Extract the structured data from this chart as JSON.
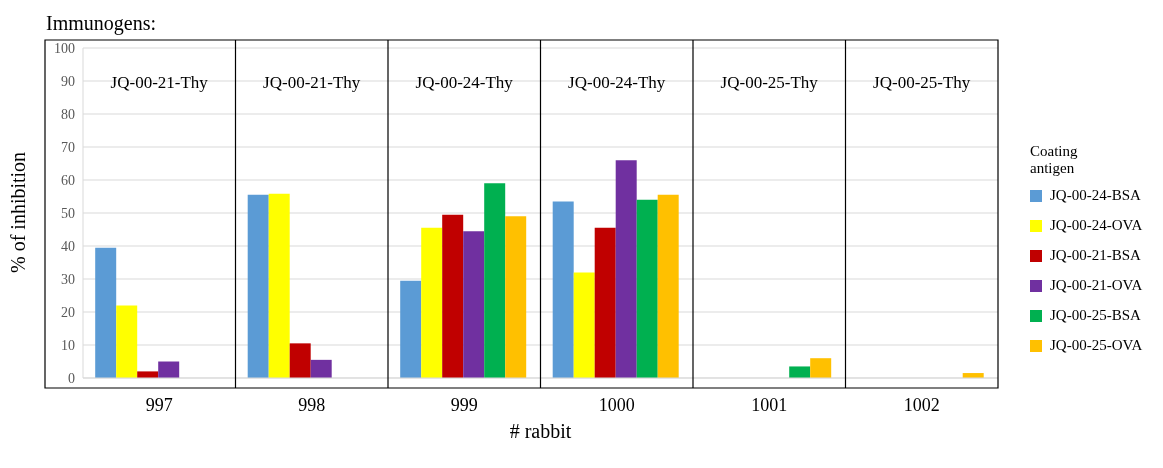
{
  "chart_data": {
    "type": "bar",
    "title": "Immunogens:",
    "xlabel": "# rabbit",
    "ylabel": "% of inhibition",
    "legend_title": "Coating antigen",
    "categories": [
      "997",
      "998",
      "999",
      "1000",
      "1001",
      "1002"
    ],
    "series": [
      {
        "name": "JQ-00-24-BSA",
        "color": "#5b9bd5",
        "values": [
          39.5,
          55.5,
          29.5,
          53.5,
          null,
          null
        ]
      },
      {
        "name": "JQ-00-24-OVA",
        "color": "#ffff00",
        "values": [
          22,
          55.8,
          45.5,
          32,
          null,
          null
        ]
      },
      {
        "name": "JQ-00-21-BSA",
        "color": "#c00000",
        "values": [
          2,
          10.5,
          49.5,
          45.5,
          null,
          null
        ]
      },
      {
        "name": "JQ-00-21-OVA",
        "color": "#7030a0",
        "values": [
          5,
          5.5,
          44.5,
          66,
          null,
          null
        ]
      },
      {
        "name": "JQ-00-25-BSA",
        "color": "#00b050",
        "values": [
          null,
          null,
          59,
          54,
          3.5,
          null
        ]
      },
      {
        "name": "JQ-00-25-OVA",
        "color": "#ffc000",
        "values": [
          null,
          null,
          49,
          55.5,
          6,
          1.5
        ]
      }
    ],
    "annotations": [
      "JQ-00-21-Thy",
      "JQ-00-21-Thy",
      "JQ-00-24-Thy",
      "JQ-00-24-Thy",
      "JQ-00-25-Thy",
      "JQ-00-25-Thy"
    ],
    "ylim": [
      0,
      100
    ],
    "yticks": [
      0,
      10,
      20,
      30,
      40,
      50,
      60,
      70,
      80,
      90,
      100
    ],
    "grid": "y",
    "legend": "right"
  }
}
